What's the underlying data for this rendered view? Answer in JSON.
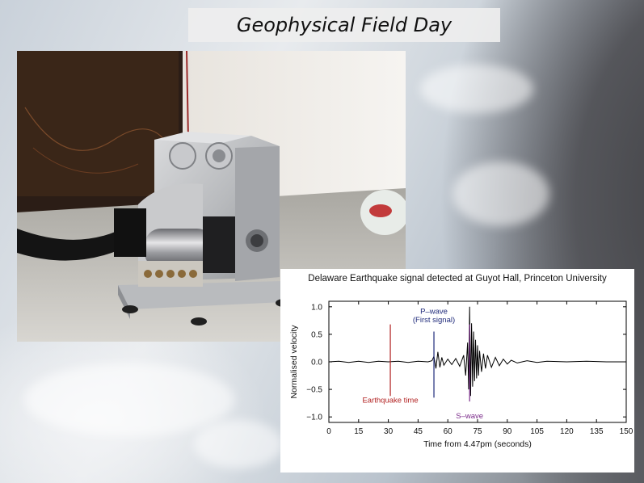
{
  "slide": {
    "title": "Geophysical Field Day"
  },
  "photo": {
    "subject": "seismometer-instrument"
  },
  "chart_data": {
    "type": "line",
    "title": "Delaware Earthquake signal detected at  Guyot Hall, Princeton University",
    "xlabel": "Time from 4.47pm (seconds)",
    "ylabel": "Normalised velocity",
    "xlim": [
      0,
      150
    ],
    "ylim": [
      -1.1,
      1.1
    ],
    "xticks": [
      0,
      15,
      30,
      45,
      60,
      75,
      90,
      105,
      120,
      135,
      150
    ],
    "yticks": [
      -1.0,
      -0.5,
      0.0,
      0.5,
      1.0
    ],
    "ytick_labels": [
      "−1.0",
      "−0.5",
      "0.0",
      "0.5",
      "1.0"
    ],
    "grid": false,
    "markers": [
      {
        "name": "Earthquake time",
        "x": 31,
        "y_range": [
          -0.62,
          0.68
        ],
        "color": "#b22222"
      },
      {
        "name": "P–wave",
        "sublabel": "(First signal)",
        "x": 53,
        "y_range": [
          -0.65,
          0.55
        ],
        "color": "#1f2a7a"
      },
      {
        "name": "S–wave",
        "x": 71,
        "y_range": [
          -0.72,
          0.68
        ],
        "color": "#7a2a8a"
      }
    ],
    "series": [
      {
        "color": "#000000",
        "x": [
          0,
          5,
          10,
          15,
          20,
          25,
          30,
          35,
          40,
          45,
          50,
          52,
          53,
          54,
          55,
          56,
          57,
          58,
          60,
          62,
          64,
          66,
          68,
          69,
          70,
          70.5,
          71,
          71.5,
          72,
          72.5,
          73,
          73.5,
          74,
          74.5,
          75,
          75.5,
          76,
          77,
          78,
          79,
          80,
          82,
          84,
          86,
          88,
          90,
          92,
          95,
          100,
          105,
          110,
          120,
          130,
          140,
          150
        ],
        "y": [
          0,
          0.01,
          -0.01,
          0.01,
          -0.01,
          0.01,
          0,
          0.01,
          -0.01,
          0.01,
          0,
          0.02,
          0.1,
          -0.12,
          0.18,
          -0.1,
          0.08,
          -0.06,
          0.05,
          -0.05,
          0.06,
          -0.08,
          0.12,
          -0.25,
          0.35,
          -0.5,
          1.0,
          -0.62,
          0.7,
          -0.45,
          0.55,
          -0.35,
          0.4,
          -0.3,
          0.3,
          -0.25,
          0.2,
          -0.18,
          0.15,
          -0.12,
          0.12,
          -0.1,
          0.08,
          -0.07,
          0.05,
          -0.04,
          0.03,
          -0.02,
          0.02,
          -0.01,
          0.01,
          0,
          0.01,
          0,
          0
        ]
      }
    ]
  }
}
